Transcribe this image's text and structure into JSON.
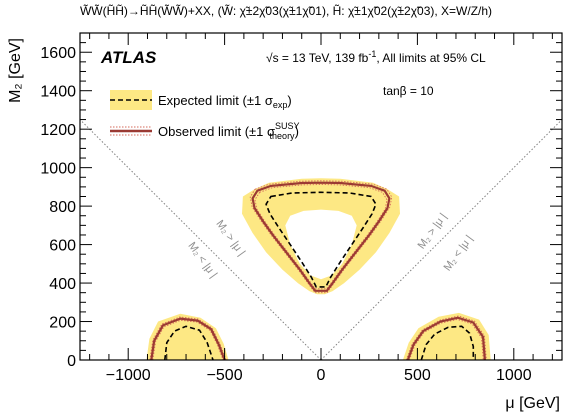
{
  "chart_data": {
    "type": "line",
    "title": "W̃W̃(H̃H̃)→H̃H̃(W̃W̃)+XX, (W̃: χ̃±2χ̃03(χ̃±1χ̃01),  H̃: χ̃±1χ̃02(χ̃±2χ̃03), X=W/Z/h)",
    "xlabel": "μ [GeV]",
    "ylabel": "M₂ [GeV]",
    "xlim": [
      -1250,
      1250
    ],
    "ylim": [
      0,
      1700
    ],
    "xticks": [
      -1000,
      -500,
      0,
      500,
      1000
    ],
    "yticks": [
      0,
      200,
      400,
      600,
      800,
      1000,
      1200,
      1400,
      1600
    ],
    "xtick_labels": [
      "−1000",
      "−500",
      "0",
      "500",
      "1000"
    ],
    "ytick_labels": [
      "0",
      "200",
      "400",
      "600",
      "800",
      "1000",
      "1200",
      "1400",
      "1600"
    ],
    "experiment": "ATLAS",
    "energy_text": "√s = 13 TeV, 139 fb",
    "lumi_sup": "-1",
    "energy_tail": ", All limits at 95% CL",
    "tanb": "tanβ = 10",
    "legend": {
      "placement": "top-left",
      "expected": "Expected limit (±1 σ",
      "expected_sub": "exp",
      "expected_tail": ")",
      "observed": "Observed limit (±1 σ",
      "observed_sup": "SUSY",
      "observed_sub": "theory",
      "observed_tail": ")"
    },
    "diagonal_labels": {
      "left_upper": "M₂ > |μ |",
      "left_lower": "M₂ < |μ |",
      "right_upper": "M₂ > |μ |",
      "right_lower": "M₂ < |μ |"
    },
    "colors": {
      "band": "#fde884",
      "observed": "#9b3a33",
      "observed_band": "#d5685a",
      "expected": "#000000",
      "diagonal": "#808080"
    },
    "regions": {
      "center": {
        "observed": [
          [
            -330,
            880
          ],
          [
            -260,
            905
          ],
          [
            -100,
            920
          ],
          [
            0,
            922
          ],
          [
            100,
            920
          ],
          [
            260,
            905
          ],
          [
            330,
            880
          ],
          [
            355,
            840
          ],
          [
            345,
            790
          ],
          [
            300,
            720
          ],
          [
            250,
            650
          ],
          [
            180,
            560
          ],
          [
            110,
            470
          ],
          [
            60,
            400
          ],
          [
            30,
            360
          ],
          [
            -30,
            360
          ],
          [
            -60,
            400
          ],
          [
            -110,
            470
          ],
          [
            -180,
            560
          ],
          [
            -250,
            650
          ],
          [
            -300,
            720
          ],
          [
            -345,
            790
          ],
          [
            -355,
            840
          ]
        ],
        "expected": [
          [
            -260,
            850
          ],
          [
            -150,
            868
          ],
          [
            0,
            872
          ],
          [
            150,
            868
          ],
          [
            260,
            850
          ],
          [
            285,
            810
          ],
          [
            265,
            760
          ],
          [
            220,
            690
          ],
          [
            160,
            600
          ],
          [
            100,
            510
          ],
          [
            50,
            430
          ],
          [
            25,
            380
          ],
          [
            -25,
            380
          ],
          [
            -50,
            430
          ],
          [
            -100,
            510
          ],
          [
            -160,
            600
          ],
          [
            -220,
            690
          ],
          [
            -265,
            760
          ],
          [
            -285,
            810
          ]
        ],
        "band_outer": [
          [
            -345,
            888
          ],
          [
            -270,
            922
          ],
          [
            -100,
            942
          ],
          [
            0,
            945
          ],
          [
            100,
            942
          ],
          [
            270,
            922
          ],
          [
            345,
            888
          ],
          [
            405,
            850
          ],
          [
            410,
            760
          ],
          [
            355,
            660
          ],
          [
            285,
            560
          ],
          [
            200,
            470
          ],
          [
            120,
            400
          ],
          [
            60,
            358
          ],
          [
            20,
            342
          ],
          [
            -20,
            342
          ],
          [
            -60,
            358
          ],
          [
            -120,
            400
          ],
          [
            -200,
            470
          ],
          [
            -285,
            560
          ],
          [
            -355,
            660
          ],
          [
            -410,
            760
          ],
          [
            -405,
            850
          ]
        ],
        "band_inner": [
          [
            -160,
            750
          ],
          [
            -90,
            775
          ],
          [
            0,
            782
          ],
          [
            90,
            775
          ],
          [
            160,
            750
          ],
          [
            185,
            700
          ],
          [
            160,
            600
          ],
          [
            110,
            500
          ],
          [
            55,
            440
          ],
          [
            0,
            420
          ],
          [
            -55,
            440
          ],
          [
            -110,
            500
          ],
          [
            -160,
            600
          ],
          [
            -185,
            700
          ]
        ]
      },
      "left": {
        "observed": [
          [
            -880,
            0
          ],
          [
            -865,
            100
          ],
          [
            -820,
            180
          ],
          [
            -730,
            215
          ],
          [
            -640,
            205
          ],
          [
            -570,
            160
          ],
          [
            -530,
            80
          ],
          [
            -500,
            0
          ]
        ],
        "expected": [
          [
            -810,
            0
          ],
          [
            -800,
            90
          ],
          [
            -760,
            150
          ],
          [
            -700,
            175
          ],
          [
            -630,
            155
          ],
          [
            -590,
            90
          ],
          [
            -560,
            0
          ]
        ],
        "band": [
          [
            -905,
            0
          ],
          [
            -890,
            110
          ],
          [
            -845,
            200
          ],
          [
            -730,
            240
          ],
          [
            -625,
            220
          ],
          [
            -545,
            165
          ],
          [
            -505,
            85
          ],
          [
            -480,
            0
          ]
        ]
      },
      "right": {
        "observed": [
          [
            450,
            0
          ],
          [
            480,
            80
          ],
          [
            530,
            150
          ],
          [
            620,
            200
          ],
          [
            710,
            220
          ],
          [
            790,
            195
          ],
          [
            840,
            120
          ],
          [
            850,
            0
          ]
        ],
        "expected": [
          [
            520,
            0
          ],
          [
            545,
            80
          ],
          [
            590,
            135
          ],
          [
            660,
            170
          ],
          [
            730,
            175
          ],
          [
            770,
            140
          ],
          [
            790,
            70
          ],
          [
            790,
            0
          ]
        ],
        "band": [
          [
            425,
            0
          ],
          [
            455,
            90
          ],
          [
            505,
            165
          ],
          [
            610,
            225
          ],
          [
            715,
            245
          ],
          [
            820,
            210
          ],
          [
            870,
            130
          ],
          [
            880,
            0
          ]
        ]
      }
    }
  }
}
